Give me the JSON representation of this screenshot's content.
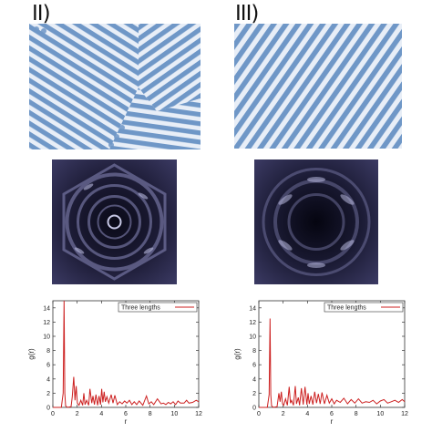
{
  "panels": [
    {
      "id": "II",
      "label": "II)",
      "plot": {
        "legend": "Three lengths",
        "xlabel": "r",
        "ylabel": "g(r)"
      }
    },
    {
      "id": "III",
      "label": "III)",
      "plot": {
        "legend": "Three lengths",
        "xlabel": "r",
        "ylabel": "g(r)"
      }
    }
  ],
  "colors": {
    "stripe_blue": "#6f97c7",
    "stripe_light": "#e8eef7",
    "fft_dark": "#0a0a18",
    "fft_mid": "#3b3a63",
    "fft_bright": "#c7c8e6",
    "curve_red": "#cc1f1f"
  },
  "chart_data": [
    {
      "type": "line",
      "panel": "II",
      "legend": "Three lengths",
      "xlabel": "r",
      "ylabel": "g(r)",
      "xlim": [
        0,
        12
      ],
      "ylim": [
        0,
        15
      ],
      "xticks": [
        0,
        2,
        4,
        6,
        8,
        10,
        12
      ],
      "yticks": [
        0,
        2,
        4,
        6,
        8,
        10,
        12,
        14
      ],
      "series": [
        {
          "name": "Three lengths",
          "x": [
            0,
            0.7,
            0.85,
            0.92,
            0.98,
            1.05,
            1.2,
            1.5,
            1.6,
            1.72,
            1.82,
            1.92,
            2.02,
            2.15,
            2.3,
            2.45,
            2.55,
            2.65,
            2.78,
            2.95,
            3.05,
            3.2,
            3.3,
            3.42,
            3.55,
            3.68,
            3.8,
            3.92,
            4.02,
            4.12,
            4.22,
            4.32,
            4.45,
            4.6,
            4.8,
            4.95,
            5.1,
            5.3,
            5.5,
            5.7,
            5.9,
            6.1,
            6.3,
            6.5,
            6.7,
            6.9,
            7.1,
            7.4,
            7.7,
            7.9,
            8.1,
            8.3,
            8.6,
            8.9,
            9.1,
            9.3,
            9.5,
            9.7,
            9.9,
            10.1,
            10.3,
            10.5,
            10.8,
            11.0,
            11.2,
            11.5,
            11.8,
            12.0
          ],
          "y": [
            0,
            0,
            2.0,
            15.0,
            2.0,
            0.2,
            0.0,
            0.1,
            1.5,
            4.3,
            1.0,
            3.0,
            0.6,
            0.3,
            1.0,
            0.3,
            2.0,
            0.4,
            1.0,
            0.3,
            2.6,
            0.6,
            1.6,
            0.4,
            1.8,
            0.3,
            1.6,
            0.4,
            2.6,
            0.7,
            2.2,
            0.8,
            1.5,
            0.6,
            1.8,
            0.6,
            1.7,
            0.4,
            0.8,
            0.5,
            0.9,
            0.6,
            1.0,
            0.4,
            0.8,
            0.4,
            0.9,
            0.3,
            1.6,
            0.5,
            0.8,
            0.4,
            1.2,
            0.5,
            0.6,
            0.4,
            0.7,
            0.5,
            0.8,
            0.4,
            0.9,
            0.6,
            0.6,
            1.0,
            0.6,
            0.7,
            1.0,
            0.8
          ]
        }
      ]
    },
    {
      "type": "line",
      "panel": "III",
      "legend": "Three lengths",
      "xlabel": "r",
      "ylabel": "g(r)",
      "xlim": [
        0,
        12
      ],
      "ylim": [
        0,
        15
      ],
      "xticks": [
        0,
        2,
        4,
        6,
        8,
        10,
        12
      ],
      "yticks": [
        0,
        2,
        4,
        6,
        8,
        10,
        12,
        14
      ],
      "series": [
        {
          "name": "Three lengths",
          "x": [
            0,
            0.7,
            0.85,
            0.92,
            0.98,
            1.05,
            1.2,
            1.5,
            1.65,
            1.75,
            1.85,
            1.95,
            2.05,
            2.2,
            2.35,
            2.5,
            2.6,
            2.7,
            2.85,
            3.0,
            3.1,
            3.25,
            3.35,
            3.5,
            3.65,
            3.8,
            3.95,
            4.05,
            4.15,
            4.3,
            4.45,
            4.6,
            4.75,
            4.9,
            5.05,
            5.2,
            5.4,
            5.6,
            5.8,
            6.0,
            6.2,
            6.4,
            6.7,
            7.0,
            7.3,
            7.6,
            7.9,
            8.2,
            8.5,
            8.8,
            9.1,
            9.4,
            9.7,
            10.0,
            10.3,
            10.6,
            10.9,
            11.2,
            11.5,
            11.8,
            12.0
          ],
          "y": [
            0,
            0,
            1.8,
            12.5,
            1.8,
            0.2,
            0.0,
            0.1,
            2.0,
            0.8,
            2.2,
            0.5,
            0.3,
            1.2,
            0.3,
            2.9,
            0.6,
            1.0,
            0.3,
            3.0,
            0.5,
            1.4,
            0.3,
            2.7,
            0.4,
            2.9,
            0.4,
            2.0,
            0.5,
            1.6,
            0.4,
            2.2,
            0.6,
            1.9,
            0.5,
            2.1,
            0.5,
            1.7,
            0.6,
            1.2,
            0.5,
            1.0,
            0.7,
            1.3,
            0.5,
            1.1,
            0.6,
            1.2,
            0.6,
            0.8,
            0.7,
            1.0,
            0.5,
            0.9,
            1.1,
            0.6,
            0.8,
            1.0,
            0.7,
            1.1,
            0.8
          ]
        }
      ]
    }
  ]
}
